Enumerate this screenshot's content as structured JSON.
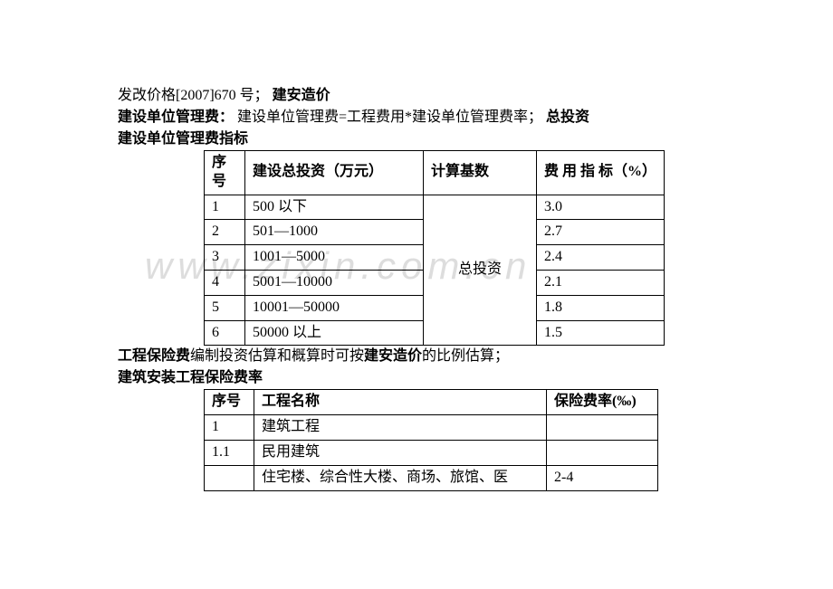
{
  "text": {
    "line1_a": "发改价格[2007]670 号；",
    "line1_b": "建安造价",
    "line2_a": "建设单位管理费：",
    "line2_b": "建设单位管理费=工程费用*建设单位管理费率；",
    "line2_c": "总投资",
    "line3": "建设单位管理费指标",
    "line4_a": "工程保险费",
    "line4_b": "编制投资估算和概算时可按",
    "line4_c": "建安造价",
    "line4_d": "的比例估算；",
    "line5": "建筑安装工程保险费率"
  },
  "table1": {
    "headers": {
      "c1": "序号",
      "c2": "建设总投资（万元）",
      "c3": "计算基数",
      "c4": "费 用 指 标（%）"
    },
    "basis": "总投资",
    "rows": [
      {
        "n": "1",
        "inv": "500 以下",
        "rate": "3.0"
      },
      {
        "n": "2",
        "inv": "501—1000",
        "rate": "2.7"
      },
      {
        "n": "3",
        "inv": "1001—5000",
        "rate": "2.4"
      },
      {
        "n": "4",
        "inv": "5001—10000",
        "rate": "2.1"
      },
      {
        "n": "5",
        "inv": "10001—50000",
        "rate": "1.8"
      },
      {
        "n": "6",
        "inv": "50000 以上",
        "rate": "1.5"
      }
    ]
  },
  "table2": {
    "headers": {
      "c1": "序号",
      "c2": "工程名称",
      "c3": "保险费率(‰)"
    },
    "rows": [
      {
        "n": "1",
        "name": "建筑工程",
        "rate": ""
      },
      {
        "n": "1.1",
        "name": "民用建筑",
        "rate": ""
      },
      {
        "n": "",
        "name": "住宅楼、综合性大楼、商场、旅馆、医",
        "rate": "2-4"
      }
    ]
  },
  "watermark": "www.zixin.com.cn",
  "colors": {
    "background": "#ffffff",
    "text": "#000000",
    "border": "#000000",
    "watermark": "rgba(180,180,180,0.45)"
  },
  "fonts": {
    "body": "SimSun",
    "size_pt": 12
  }
}
